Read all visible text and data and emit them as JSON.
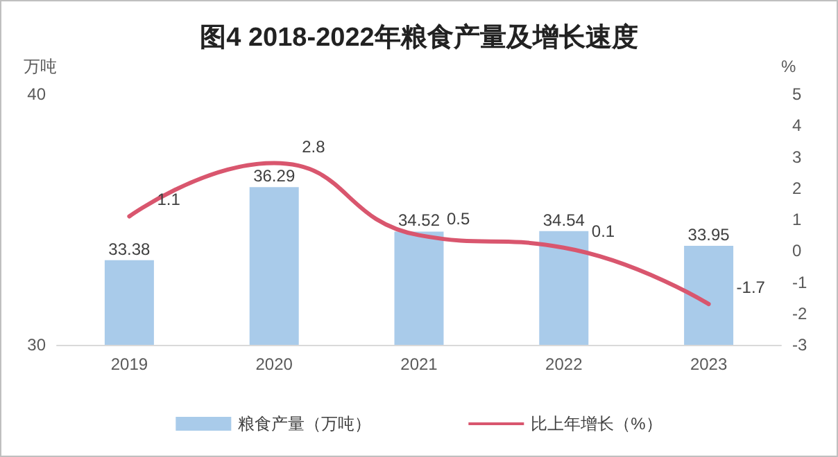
{
  "chart_data": {
    "type": "bar",
    "title": "图4 2018-2022年粮食产量及增长速度",
    "ylabel": "万吨",
    "y2label": "%",
    "categories": [
      "2019",
      "2020",
      "2021",
      "2022",
      "2023"
    ],
    "series": [
      {
        "name": "粮食产量（万吨）",
        "type": "bar",
        "color": "#a9cbea",
        "values": [
          33.38,
          36.29,
          34.52,
          34.54,
          33.95
        ]
      },
      {
        "name": "比上年增长（%）",
        "type": "line",
        "axis": "y2",
        "color": "#d9566e",
        "values": [
          1.1,
          2.8,
          0.5,
          0.1,
          -1.7
        ]
      }
    ],
    "ylim": [
      30,
      40
    ],
    "yticks": [
      30,
      40
    ],
    "y2lim": [
      -3,
      5
    ],
    "y2ticks": [
      -3,
      -2,
      -1,
      0,
      1,
      2,
      3,
      4,
      5
    ],
    "data_labels": true,
    "legend": "bottom",
    "grid": false,
    "marker": "none",
    "line_style": "solid"
  }
}
